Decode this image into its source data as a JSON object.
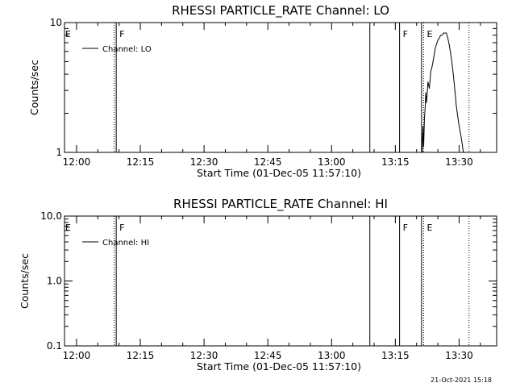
{
  "chart_data": [
    {
      "type": "line",
      "title": "RHESSI PARTICLE_RATE Channel: LO",
      "xlabel": "Start Time (01-Dec-05 11:57:10)",
      "ylabel": "Counts/sec",
      "y_scale": "log",
      "ylim": [
        1,
        10
      ],
      "xlim": [
        "11:57:10",
        "13:38:50"
      ],
      "x_ticks": [
        "12:00",
        "12:15",
        "12:30",
        "12:45",
        "13:00",
        "13:15",
        "13:30"
      ],
      "y_ticks": [
        "1",
        "10"
      ],
      "legend": {
        "label": "Channel: LO",
        "placement": "top-left"
      },
      "vertical_lines": [
        {
          "time": "12:08:50",
          "style": "dotted",
          "label": ""
        },
        {
          "time": "12:09:20",
          "style": "solid",
          "label": "F"
        },
        {
          "time": "13:09:00",
          "style": "solid",
          "label": ""
        },
        {
          "time": "13:16:00",
          "style": "solid",
          "label": "F"
        },
        {
          "time": "13:21:10",
          "style": "solid",
          "label": ""
        },
        {
          "time": "13:21:40",
          "style": "dotted",
          "label": "E"
        },
        {
          "time": "13:32:20",
          "style": "dotted",
          "label": ""
        }
      ],
      "edge_label": "E",
      "series": [
        {
          "name": "Channel: LO",
          "x": [
            "13:21:10",
            "13:21:20",
            "13:21:30",
            "13:21:40",
            "13:21:50",
            "13:22:00",
            "13:22:10",
            "13:22:20",
            "13:22:40",
            "13:23:00",
            "13:23:20",
            "13:23:40",
            "13:24:00",
            "13:24:20",
            "13:24:40",
            "13:25:00",
            "13:25:20",
            "13:25:40",
            "13:26:00",
            "13:26:20",
            "13:26:40",
            "13:27:00",
            "13:27:20",
            "13:27:40",
            "13:28:00",
            "13:28:20",
            "13:28:40",
            "13:29:00",
            "13:29:20",
            "13:29:40",
            "13:30:00",
            "13:30:20",
            "13:30:40",
            "13:31:00"
          ],
          "y": [
            1.4,
            1.0,
            1.6,
            1.1,
            1.8,
            2.2,
            2.9,
            2.4,
            3.5,
            3.1,
            4.2,
            4.6,
            5.3,
            6.2,
            6.8,
            7.3,
            7.6,
            8.0,
            8.0,
            8.3,
            8.3,
            8.3,
            7.6,
            6.8,
            5.8,
            4.9,
            3.9,
            3.0,
            2.3,
            1.9,
            1.6,
            1.4,
            1.2,
            1.0
          ]
        }
      ]
    },
    {
      "type": "line",
      "title": "RHESSI PARTICLE_RATE Channel: HI",
      "xlabel": "Start Time (01-Dec-05 11:57:10)",
      "ylabel": "Counts/sec",
      "y_scale": "log",
      "ylim": [
        0.1,
        10
      ],
      "xlim": [
        "11:57:10",
        "13:38:50"
      ],
      "x_ticks": [
        "12:00",
        "12:15",
        "12:30",
        "12:45",
        "13:00",
        "13:15",
        "13:30"
      ],
      "y_ticks": [
        "0.1",
        "1.0",
        "10.0"
      ],
      "legend": {
        "label": "Channel: HI",
        "placement": "top-left"
      },
      "vertical_lines": [
        {
          "time": "12:08:50",
          "style": "dotted",
          "label": ""
        },
        {
          "time": "12:09:20",
          "style": "solid",
          "label": "F"
        },
        {
          "time": "13:09:00",
          "style": "solid",
          "label": ""
        },
        {
          "time": "13:16:00",
          "style": "solid",
          "label": "F"
        },
        {
          "time": "13:21:10",
          "style": "solid",
          "label": ""
        },
        {
          "time": "13:21:40",
          "style": "dotted",
          "label": "E"
        },
        {
          "time": "13:32:20",
          "style": "dotted",
          "label": ""
        }
      ],
      "edge_label": "E",
      "series": [
        {
          "name": "Channel: HI",
          "x": [],
          "y": []
        }
      ]
    }
  ],
  "timestamp": "21-Oct-2021 15:18"
}
